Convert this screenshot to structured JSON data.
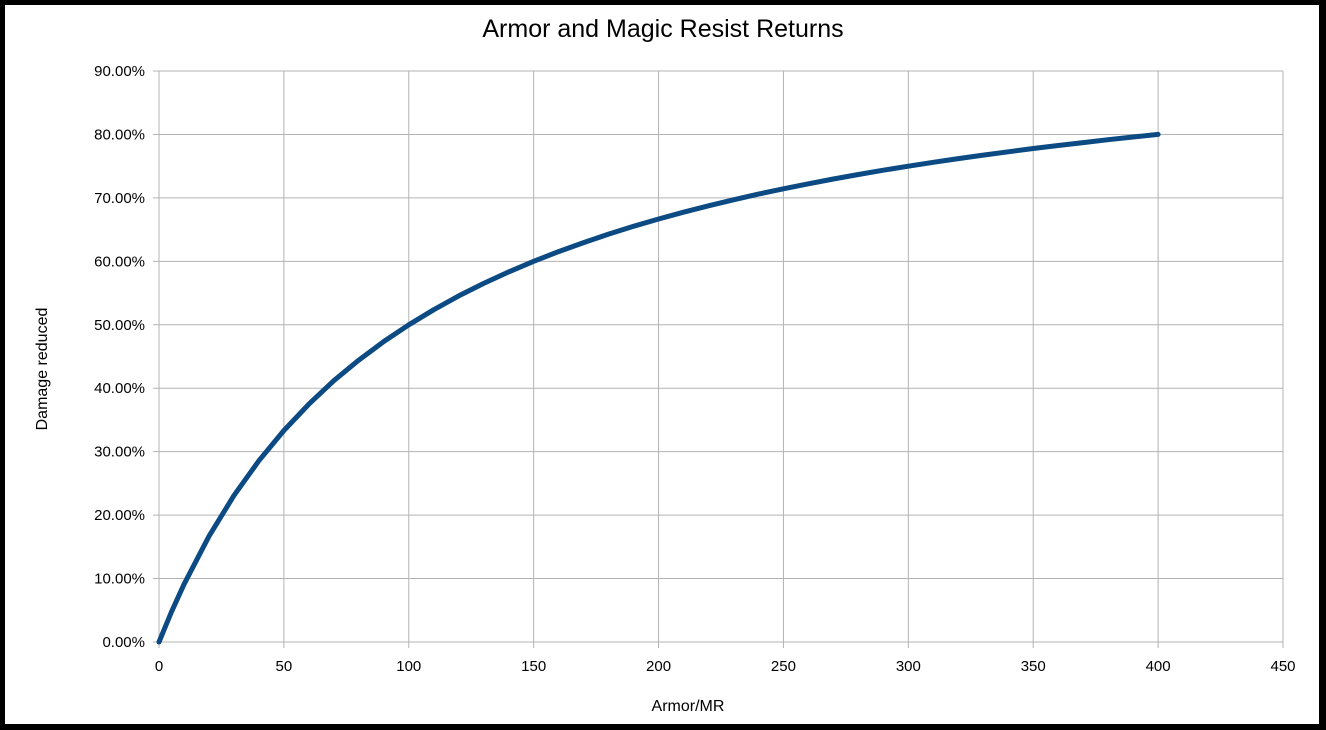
{
  "chart_data": {
    "type": "line",
    "title": "Armor and Magic Resist Returns",
    "xlabel": "Armor/MR",
    "ylabel": "Damage reduced",
    "xlim": [
      0,
      450
    ],
    "ylim": [
      0,
      0.9
    ],
    "x_ticks": [
      "0",
      "50",
      "100",
      "150",
      "200",
      "250",
      "300",
      "350",
      "400",
      "450"
    ],
    "y_ticks": [
      "0.00%",
      "10.00%",
      "20.00%",
      "30.00%",
      "40.00%",
      "50.00%",
      "60.00%",
      "70.00%",
      "80.00%",
      "90.00%"
    ],
    "grid": true,
    "legend": "none",
    "series": [
      {
        "color": "#0b4a83",
        "x": [
          0,
          5,
          10,
          20,
          30,
          40,
          50,
          60,
          70,
          80,
          90,
          100,
          110,
          120,
          130,
          140,
          150,
          160,
          170,
          180,
          190,
          200,
          210,
          220,
          230,
          240,
          250,
          260,
          270,
          280,
          290,
          300,
          310,
          320,
          330,
          340,
          350,
          360,
          370,
          380,
          390,
          400
        ],
        "y": [
          0,
          0.0476,
          0.0909,
          0.1667,
          0.2308,
          0.2857,
          0.3333,
          0.375,
          0.4118,
          0.4444,
          0.4737,
          0.5,
          0.5238,
          0.5455,
          0.5652,
          0.5833,
          0.6,
          0.6154,
          0.6296,
          0.6429,
          0.6552,
          0.6667,
          0.6774,
          0.6875,
          0.697,
          0.7059,
          0.7143,
          0.7222,
          0.7297,
          0.7368,
          0.7436,
          0.75,
          0.7561,
          0.7619,
          0.7674,
          0.7727,
          0.7778,
          0.7826,
          0.7872,
          0.7917,
          0.7959,
          0.8
        ]
      }
    ]
  }
}
